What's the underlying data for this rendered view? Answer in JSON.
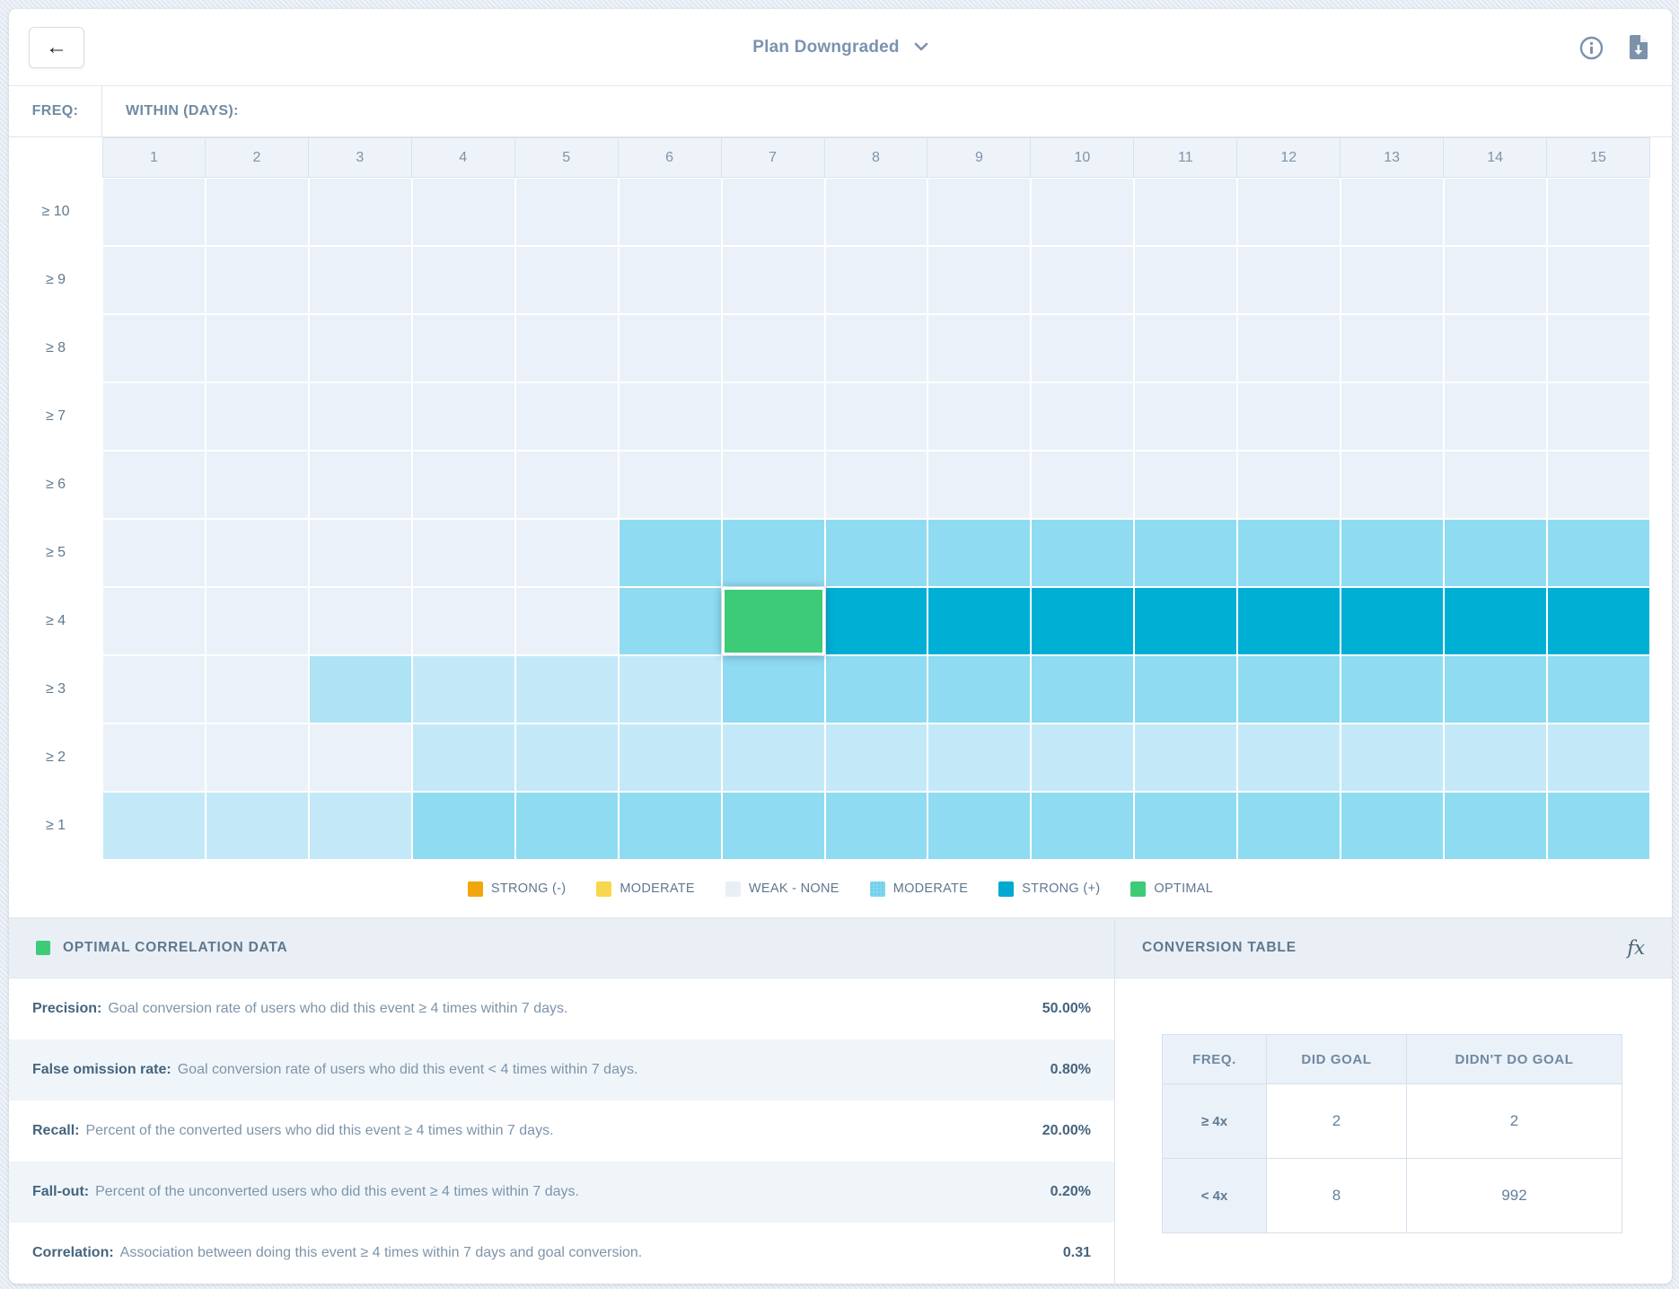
{
  "header": {
    "back_icon": "←",
    "title": "Plan Downgraded",
    "accent_text_color": "#7b93ae",
    "icons": [
      "info-icon",
      "export-icon"
    ]
  },
  "heatmap": {
    "freq_label": "FREQ:",
    "within_label": "WITHIN (DAYS):",
    "columns": [
      "1",
      "2",
      "3",
      "4",
      "5",
      "6",
      "7",
      "8",
      "9",
      "10",
      "11",
      "12",
      "13",
      "14",
      "15"
    ],
    "rows": [
      "≥ 10",
      "≥ 9",
      "≥ 8",
      "≥ 7",
      "≥ 6",
      "≥ 5",
      "≥ 4",
      "≥ 3",
      "≥ 2",
      "≥ 1"
    ],
    "cells": [
      [
        "w",
        "w",
        "w",
        "w",
        "w",
        "w",
        "w",
        "w",
        "w",
        "w",
        "w",
        "w",
        "w",
        "w",
        "w"
      ],
      [
        "w",
        "w",
        "w",
        "w",
        "w",
        "w",
        "w",
        "w",
        "w",
        "w",
        "w",
        "w",
        "w",
        "w",
        "w"
      ],
      [
        "w",
        "w",
        "w",
        "w",
        "w",
        "w",
        "w",
        "w",
        "w",
        "w",
        "w",
        "w",
        "w",
        "w",
        "w"
      ],
      [
        "w",
        "w",
        "w",
        "w",
        "w",
        "w",
        "w",
        "w",
        "w",
        "w",
        "w",
        "w",
        "w",
        "w",
        "w"
      ],
      [
        "w",
        "w",
        "w",
        "w",
        "w",
        "w",
        "w",
        "w",
        "w",
        "w",
        "w",
        "w",
        "w",
        "w",
        "w"
      ],
      [
        "w",
        "w",
        "w",
        "w",
        "w",
        "m",
        "m",
        "m",
        "m",
        "m",
        "m",
        "m",
        "m",
        "m",
        "m"
      ],
      [
        "w",
        "w",
        "w",
        "w",
        "w",
        "m",
        "g",
        "s",
        "s",
        "s",
        "s",
        "s",
        "s",
        "s",
        "s"
      ],
      [
        "w",
        "w",
        "pl",
        "p",
        "p",
        "p",
        "m",
        "m",
        "m",
        "m",
        "m",
        "m",
        "m",
        "m",
        "m"
      ],
      [
        "w",
        "w",
        "w",
        "p",
        "p",
        "p",
        "p",
        "p",
        "p",
        "p",
        "p",
        "p",
        "p",
        "p",
        "p"
      ],
      [
        "p",
        "p",
        "p",
        "m",
        "m",
        "m",
        "m",
        "m",
        "m",
        "m",
        "m",
        "m",
        "m",
        "m",
        "m"
      ]
    ],
    "colors": {
      "w": "#ebf1f8",
      "p": "#c3e9f8",
      "pl": "#ade3f5",
      "m": "#8fdbf2",
      "s": "#00afd4",
      "g": "#3dcb77"
    }
  },
  "legend": {
    "items": [
      {
        "label": "STRONG (-)",
        "color": "#f2a60d",
        "dotted": false
      },
      {
        "label": "MODERATE",
        "color": "#f8d64e",
        "dotted": false
      },
      {
        "label": "WEAK - NONE",
        "color": "#e9eff6",
        "dotted": false
      },
      {
        "label": "MODERATE",
        "color": "#7fd6ef",
        "dotted": true
      },
      {
        "label": "STRONG (+)",
        "color": "#00a9cf",
        "dotted": false
      },
      {
        "label": "OPTIMAL",
        "color": "#3ecb77",
        "dotted": false
      }
    ]
  },
  "optimal_panel": {
    "title": "OPTIMAL CORRELATION DATA",
    "swatch_color": "#3ecb77",
    "rows": [
      {
        "term": "Precision:",
        "desc": "Goal conversion rate of users who did this event ≥ 4 times within 7 days.",
        "value": "50.00%"
      },
      {
        "term": "False omission rate:",
        "desc": "Goal conversion rate of users who did this event < 4 times within 7 days.",
        "value": "0.80%"
      },
      {
        "term": "Recall:",
        "desc": "Percent of the converted users who did this event ≥ 4 times within 7 days.",
        "value": "20.00%"
      },
      {
        "term": "Fall-out:",
        "desc": "Percent of the unconverted users who did this event ≥ 4 times within 7 days.",
        "value": "0.20%"
      },
      {
        "term": "Correlation:",
        "desc": "Association between doing this event ≥ 4 times within 7 days and goal conversion.",
        "value": "0.31"
      }
    ]
  },
  "conversion_panel": {
    "title": "CONVERSION TABLE",
    "fx_icon": "fx",
    "headers": [
      "FREQ.",
      "DID GOAL",
      "DIDN'T DO GOAL"
    ],
    "rows": [
      {
        "freq": "≥ 4x",
        "did": "2",
        "didnt": "2"
      },
      {
        "freq": "< 4x",
        "did": "8",
        "didnt": "992"
      }
    ]
  }
}
